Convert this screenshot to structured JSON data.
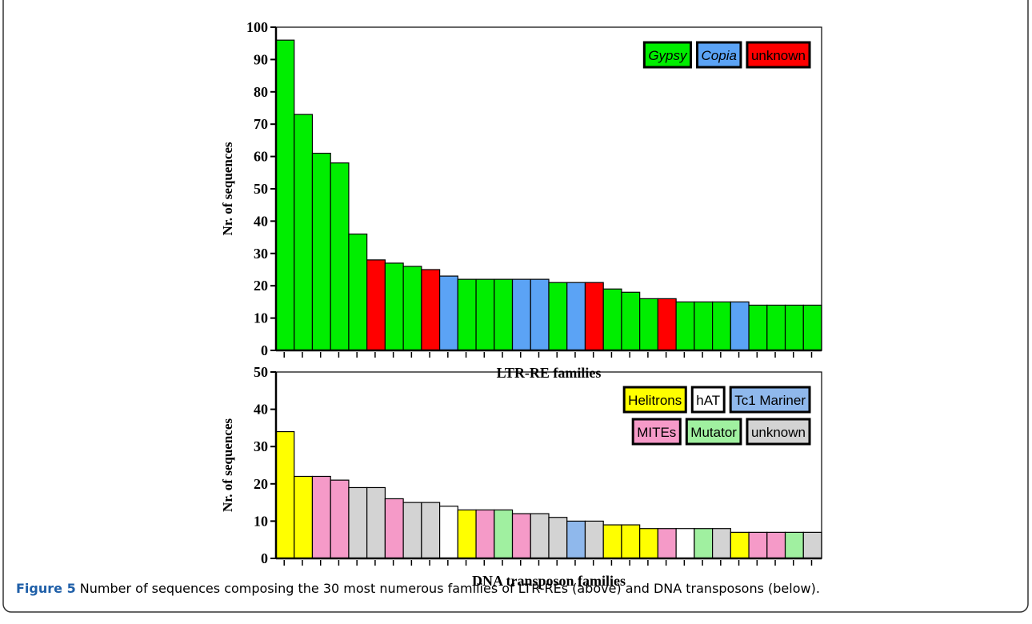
{
  "chart_data": [
    {
      "type": "bar",
      "ylabel": "Nr. of sequences",
      "xlabel": "LTR-RE families",
      "ylim": [
        0,
        100
      ],
      "yticks": [
        0,
        10,
        20,
        30,
        40,
        50,
        60,
        70,
        80,
        90,
        100
      ],
      "categories": [
        null,
        null,
        null,
        null,
        null,
        null,
        null,
        null,
        null,
        null,
        null,
        null,
        null,
        null,
        null,
        null,
        null,
        null,
        null,
        null,
        null,
        null,
        null,
        null,
        null,
        null,
        null,
        null,
        null,
        null
      ],
      "values": [
        96,
        73,
        61,
        58,
        36,
        28,
        27,
        26,
        25,
        23,
        22,
        22,
        22,
        22,
        22,
        21,
        21,
        21,
        19,
        18,
        16,
        16,
        15,
        15,
        15,
        15,
        14,
        14,
        14,
        14
      ],
      "colors": [
        "#00ee00",
        "#00ee00",
        "#00ee00",
        "#00ee00",
        "#00ee00",
        "#ff0000",
        "#00ee00",
        "#00ee00",
        "#ff0000",
        "#5ba3f5",
        "#00ee00",
        "#00ee00",
        "#00ee00",
        "#5ba3f5",
        "#5ba3f5",
        "#00ee00",
        "#5ba3f5",
        "#ff0000",
        "#00ee00",
        "#00ee00",
        "#00ee00",
        "#ff0000",
        "#00ee00",
        "#00ee00",
        "#00ee00",
        "#5ba3f5",
        "#00ee00",
        "#00ee00",
        "#00ee00",
        "#00ee00"
      ],
      "legend": [
        [
          {
            "name": "Gypsy",
            "color": "#00ee00",
            "italic": true
          },
          {
            "name": "Copia",
            "color": "#5ba3f5",
            "italic": true
          },
          {
            "name": "unknown",
            "color": "#ff0000",
            "italic": false
          }
        ]
      ]
    },
    {
      "type": "bar",
      "ylabel": "Nr. of sequences",
      "xlabel": "DNA transposon families",
      "ylim": [
        0,
        50
      ],
      "yticks": [
        0,
        10,
        20,
        30,
        40,
        50
      ],
      "categories": [
        null,
        null,
        null,
        null,
        null,
        null,
        null,
        null,
        null,
        null,
        null,
        null,
        null,
        null,
        null,
        null,
        null,
        null,
        null,
        null,
        null,
        null,
        null,
        null,
        null,
        null,
        null,
        null,
        null,
        null
      ],
      "values": [
        34,
        22,
        22,
        21,
        19,
        19,
        16,
        15,
        15,
        14,
        13,
        13,
        13,
        12,
        12,
        11,
        10,
        10,
        9,
        9,
        8,
        8,
        8,
        8,
        8,
        7,
        7,
        7,
        7,
        7
      ],
      "colors": [
        "#ffff00",
        "#ffff00",
        "#f59ac8",
        "#f59ac8",
        "#d3d3d3",
        "#d3d3d3",
        "#f59ac8",
        "#d3d3d3",
        "#d3d3d3",
        "#ffffff",
        "#ffff00",
        "#f59ac8",
        "#a0f0a0",
        "#f59ac8",
        "#d3d3d3",
        "#d3d3d3",
        "#8fb8ec",
        "#d3d3d3",
        "#ffff00",
        "#ffff00",
        "#ffff00",
        "#f59ac8",
        "#ffffff",
        "#a0f0a0",
        "#d3d3d3",
        "#ffff00",
        "#f59ac8",
        "#f59ac8",
        "#a0f0a0",
        "#d3d3d3"
      ],
      "legend": [
        [
          {
            "name": "Helitrons",
            "color": "#ffff00",
            "italic": false
          },
          {
            "name": "hAT",
            "color": "#ffffff",
            "italic": false
          },
          {
            "name": "Tc1 Mariner",
            "color": "#8fb8ec",
            "italic": false
          }
        ],
        [
          {
            "name": "MITEs",
            "color": "#f59ac8",
            "italic": false
          },
          {
            "name": "Mutator",
            "color": "#a0f0a0",
            "italic": false
          },
          {
            "name": "unknown",
            "color": "#d3d3d3",
            "italic": false
          }
        ]
      ]
    }
  ],
  "caption": {
    "label": "Figure 5",
    "text": "Number of sequences composing the 30 most numerous families of LTR-REs (above) and DNA transposons (below)."
  }
}
